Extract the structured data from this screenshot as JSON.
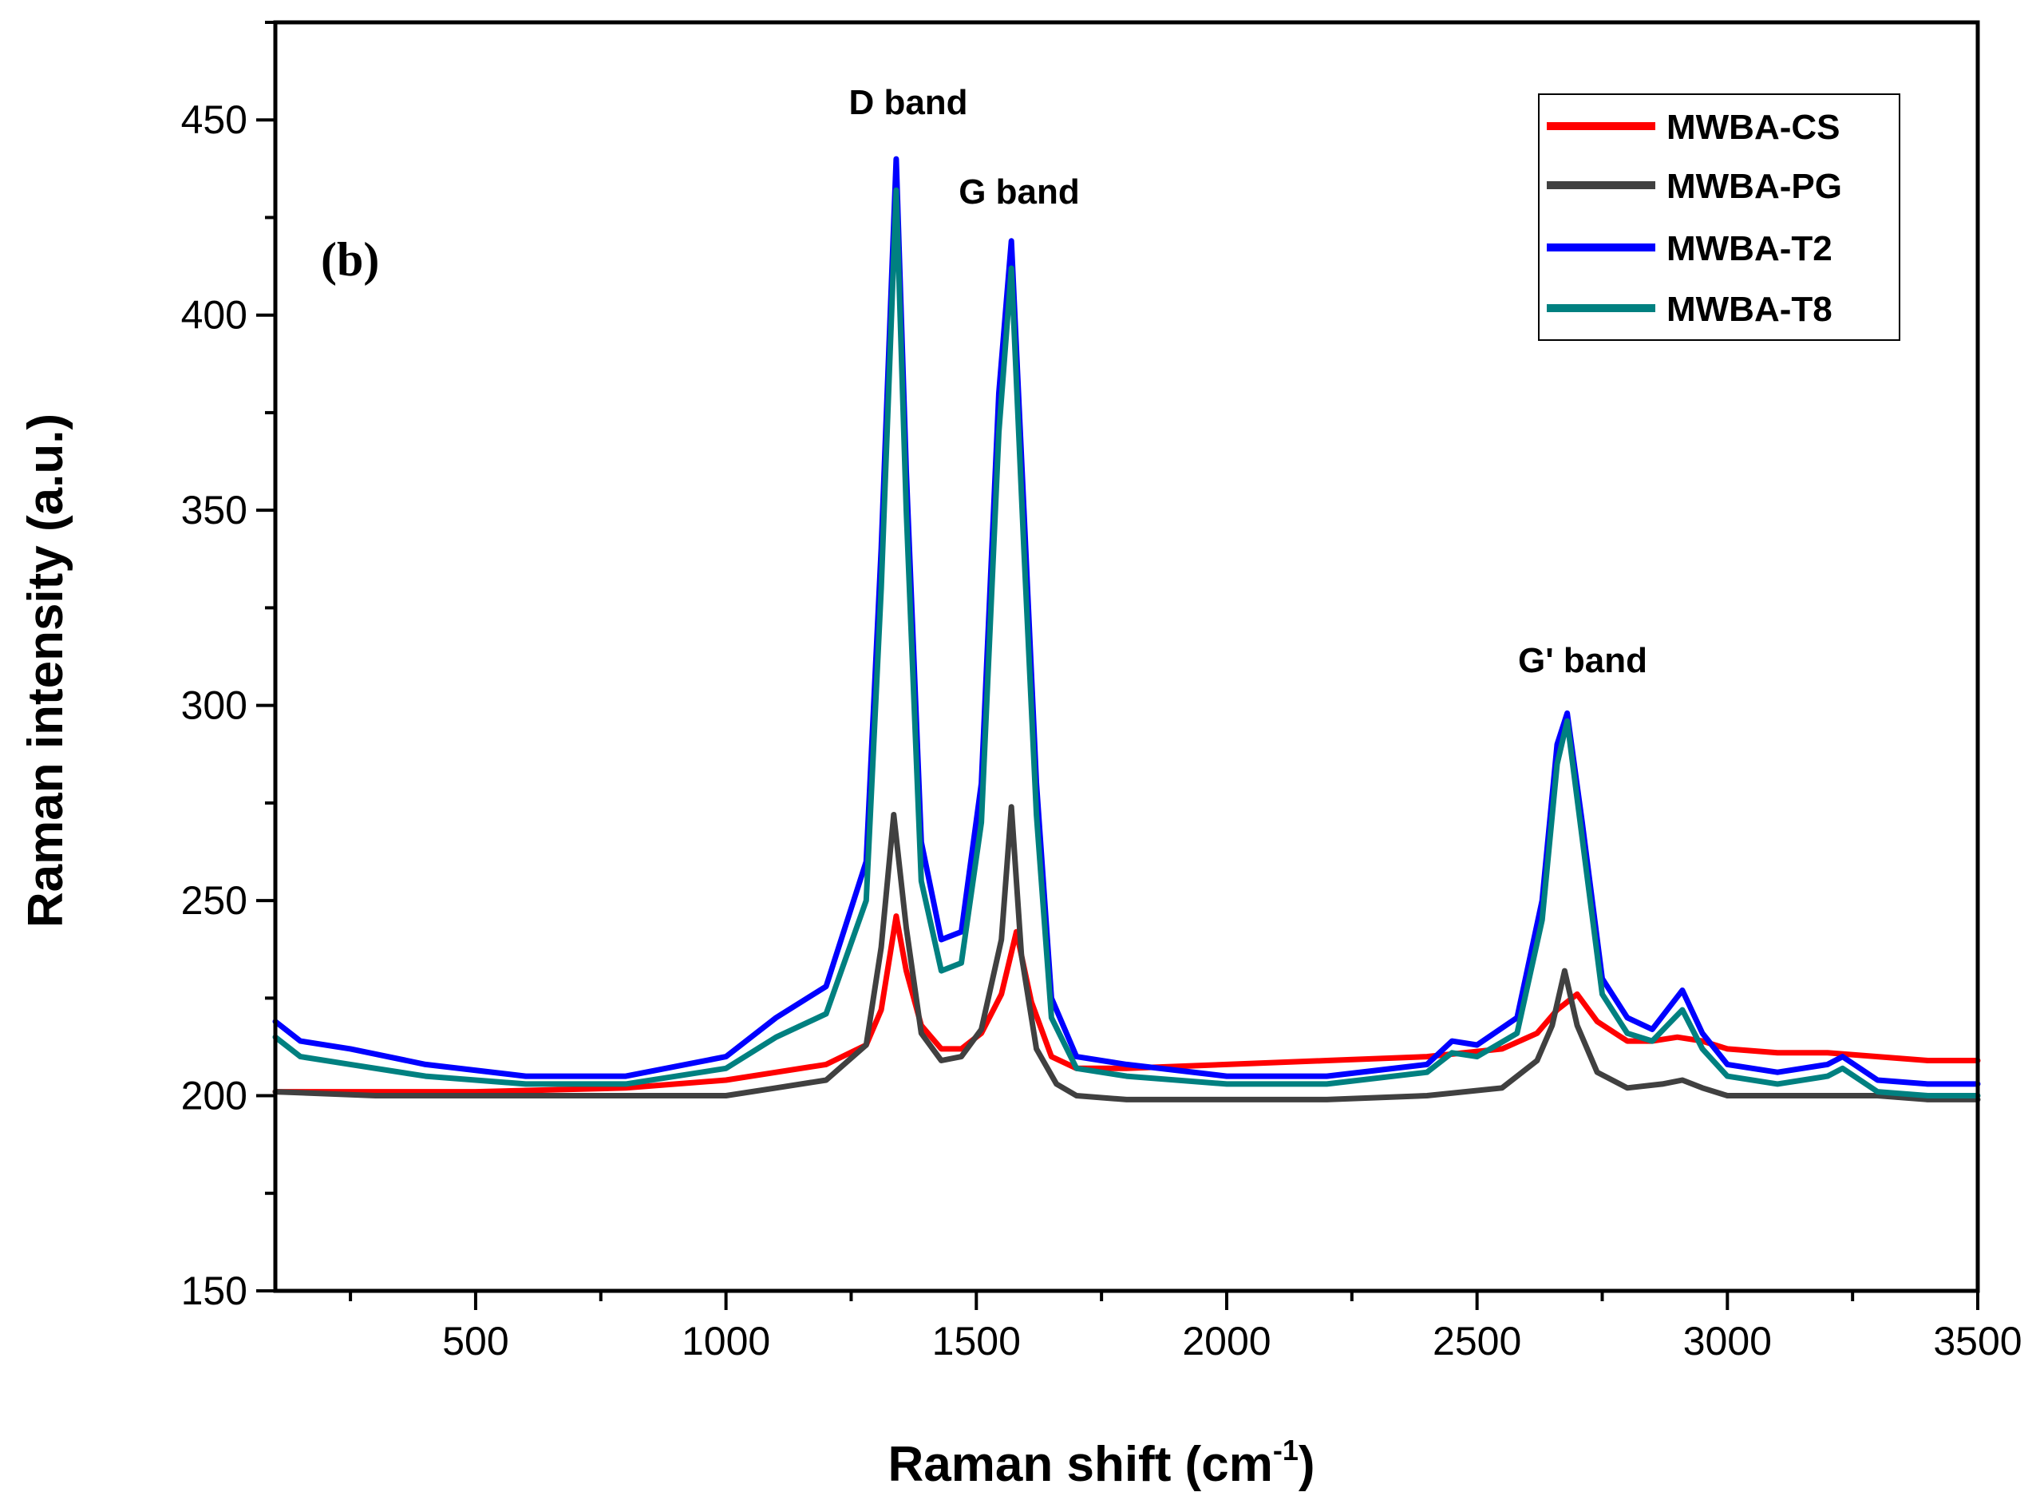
{
  "chart_data": {
    "type": "line",
    "title": "",
    "panel_label": "(b)",
    "xlabel_main": "Raman shift (cm",
    "xlabel_sup": "-1",
    "xlabel_close": ")",
    "ylabel": "Raman intensity (a.u.)",
    "xlim": [
      100,
      3500
    ],
    "ylim": [
      150,
      475
    ],
    "x_ticks": [
      500,
      1000,
      1500,
      2000,
      2500,
      3000,
      3500
    ],
    "y_ticks": [
      150,
      200,
      250,
      300,
      350,
      400,
      450
    ],
    "grid": false,
    "legend_position": "top-right",
    "annotations": [
      {
        "text": "D band",
        "x": 1340,
        "y": 455
      },
      {
        "text": "G band",
        "x": 1580,
        "y": 430
      },
      {
        "text": "G' band",
        "x": 2690,
        "y": 310
      }
    ],
    "series": [
      {
        "name": "MWBA-CS",
        "color": "#ff0000",
        "x": [
          100,
          300,
          500,
          800,
          1000,
          1100,
          1200,
          1280,
          1310,
          1340,
          1360,
          1390,
          1430,
          1470,
          1510,
          1550,
          1580,
          1610,
          1650,
          1700,
          1800,
          2000,
          2200,
          2400,
          2550,
          2620,
          2660,
          2700,
          2740,
          2800,
          2850,
          2900,
          2950,
          3000,
          3100,
          3200,
          3300,
          3400,
          3500
        ],
        "y": [
          201,
          201,
          201,
          202,
          204,
          206,
          208,
          213,
          222,
          246,
          232,
          218,
          212,
          212,
          216,
          226,
          242,
          224,
          210,
          207,
          207,
          208,
          209,
          210,
          212,
          216,
          222,
          226,
          219,
          214,
          214,
          215,
          214,
          212,
          211,
          211,
          210,
          209,
          209
        ]
      },
      {
        "name": "MWBA-PG",
        "color": "#404040",
        "x": [
          100,
          300,
          500,
          800,
          1000,
          1100,
          1200,
          1280,
          1310,
          1335,
          1360,
          1390,
          1430,
          1470,
          1510,
          1550,
          1570,
          1590,
          1620,
          1660,
          1700,
          1800,
          2000,
          2200,
          2400,
          2550,
          2620,
          2650,
          2675,
          2700,
          2740,
          2800,
          2870,
          2910,
          2950,
          3000,
          3100,
          3200,
          3300,
          3400,
          3500
        ],
        "y": [
          201,
          200,
          200,
          200,
          200,
          202,
          204,
          213,
          238,
          272,
          243,
          216,
          209,
          210,
          217,
          240,
          274,
          236,
          212,
          203,
          200,
          199,
          199,
          199,
          200,
          202,
          209,
          218,
          232,
          218,
          206,
          202,
          203,
          204,
          202,
          200,
          200,
          200,
          200,
          199,
          199
        ]
      },
      {
        "name": "MWBA-T2",
        "color": "#0000ff",
        "x": [
          100,
          150,
          250,
          400,
          600,
          800,
          1000,
          1100,
          1200,
          1280,
          1310,
          1340,
          1360,
          1390,
          1430,
          1470,
          1510,
          1545,
          1570,
          1595,
          1620,
          1650,
          1700,
          1800,
          2000,
          2200,
          2400,
          2450,
          2500,
          2580,
          2630,
          2660,
          2680,
          2710,
          2750,
          2800,
          2850,
          2880,
          2910,
          2950,
          3000,
          3100,
          3200,
          3230,
          3300,
          3400,
          3500
        ],
        "y": [
          219,
          214,
          212,
          208,
          205,
          205,
          210,
          220,
          228,
          260,
          340,
          440,
          360,
          265,
          240,
          242,
          280,
          380,
          419,
          350,
          280,
          225,
          210,
          208,
          205,
          205,
          208,
          214,
          213,
          220,
          250,
          290,
          298,
          270,
          230,
          220,
          217,
          222,
          227,
          216,
          208,
          206,
          208,
          210,
          204,
          203,
          203
        ]
      },
      {
        "name": "MWBA-T8",
        "color": "#008080",
        "x": [
          100,
          150,
          250,
          400,
          600,
          800,
          1000,
          1100,
          1200,
          1280,
          1310,
          1340,
          1360,
          1390,
          1430,
          1470,
          1510,
          1545,
          1570,
          1595,
          1620,
          1650,
          1700,
          1800,
          2000,
          2200,
          2400,
          2450,
          2500,
          2580,
          2630,
          2660,
          2680,
          2710,
          2750,
          2800,
          2850,
          2880,
          2910,
          2950,
          3000,
          3100,
          3200,
          3230,
          3300,
          3400,
          3500
        ],
        "y": [
          215,
          210,
          208,
          205,
          203,
          203,
          207,
          215,
          221,
          250,
          330,
          432,
          350,
          255,
          232,
          234,
          270,
          370,
          412,
          340,
          272,
          220,
          207,
          205,
          203,
          203,
          206,
          211,
          210,
          216,
          245,
          285,
          296,
          266,
          226,
          216,
          214,
          218,
          222,
          212,
          205,
          203,
          205,
          207,
          201,
          200,
          200
        ]
      }
    ]
  }
}
